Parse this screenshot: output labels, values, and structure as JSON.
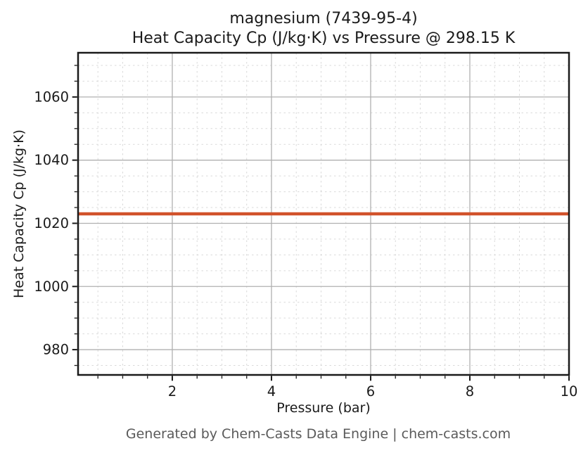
{
  "footer": {
    "credit": "Generated by Chem-Casts Data Engine | chem-casts.com"
  },
  "colors": {
    "line": "#d1522b",
    "grid_major": "#b0b0b0",
    "grid_minor": "#d9d9d9",
    "spine": "#1a1a1a",
    "tick_label": "#1a1a1a",
    "footer_text": "#5a5a5a",
    "background": "#ffffff"
  },
  "chart_data": {
    "type": "line",
    "title_lines": [
      "magnesium (7439-95-4)",
      "Heat Capacity Cp (J/kg·K) vs Pressure @ 298.15 K"
    ],
    "xlabel": "Pressure (bar)",
    "ylabel": "Heat Capacity Cp (J/kg·K)",
    "xlim": [
      0.1,
      10
    ],
    "ylim": [
      972,
      1074
    ],
    "xticks": [
      2,
      4,
      6,
      8,
      10
    ],
    "yticks": [
      980,
      1000,
      1020,
      1040,
      1060
    ],
    "x_minor_step": 0.5,
    "y_minor_step": 5,
    "grid": true,
    "legend": "none",
    "series": [
      {
        "name": "Heat Capacity Cp",
        "color": "#d1522b",
        "x": [
          0.1,
          1,
          2,
          3,
          4,
          5,
          6,
          7,
          8,
          9,
          10
        ],
        "y": [
          1023,
          1023,
          1023,
          1023,
          1023,
          1023,
          1023,
          1023,
          1023,
          1023,
          1023
        ]
      }
    ]
  }
}
